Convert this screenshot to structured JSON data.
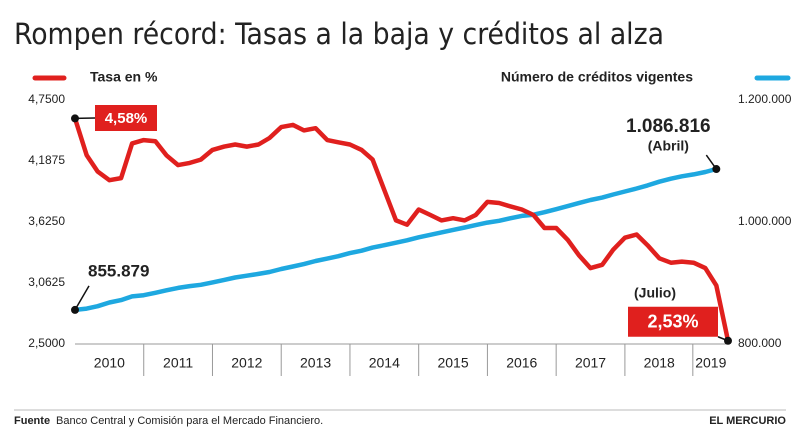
{
  "chart_data": {
    "type": "line",
    "title": "Rompen récord: Tasas a la baja y créditos al alza",
    "x": [
      2010,
      2010.17,
      2010.33,
      2010.5,
      2010.67,
      2010.83,
      2011,
      2011.17,
      2011.33,
      2011.5,
      2011.67,
      2011.83,
      2012,
      2012.17,
      2012.33,
      2012.5,
      2012.67,
      2012.83,
      2013,
      2013.17,
      2013.33,
      2013.5,
      2013.67,
      2013.83,
      2014,
      2014.17,
      2014.33,
      2014.5,
      2014.67,
      2014.83,
      2015,
      2015.17,
      2015.33,
      2015.5,
      2015.67,
      2015.83,
      2016,
      2016.17,
      2016.33,
      2016.5,
      2016.67,
      2016.83,
      2017,
      2017.17,
      2017.33,
      2017.5,
      2017.67,
      2017.83,
      2018,
      2018.17,
      2018.33,
      2018.5,
      2018.67,
      2018.83,
      2019,
      2019.17,
      2019.33,
      2019.5
    ],
    "xlim": [
      2010,
      2019.5
    ],
    "xticks": [
      {
        "value": 2010.5,
        "label": "2010"
      },
      {
        "value": 2011.5,
        "label": "2011"
      },
      {
        "value": 2012.5,
        "label": "2012"
      },
      {
        "value": 2013.5,
        "label": "2013"
      },
      {
        "value": 2014.5,
        "label": "2014"
      },
      {
        "value": 2015.5,
        "label": "2015"
      },
      {
        "value": 2016.5,
        "label": "2016"
      },
      {
        "value": 2017.5,
        "label": "2017"
      },
      {
        "value": 2018.5,
        "label": "2018"
      },
      {
        "value": 2019.25,
        "label": "2019"
      }
    ],
    "ylim": [
      2.5,
      4.75
    ],
    "yticks": [
      {
        "value": 2.5,
        "label": "2,5000"
      },
      {
        "value": 3.0625,
        "label": "3,0625"
      },
      {
        "value": 3.625,
        "label": "3,6250"
      },
      {
        "value": 4.1875,
        "label": "4,1875"
      },
      {
        "value": 4.75,
        "label": "4,7500"
      }
    ],
    "y2lim": [
      800000,
      1200000
    ],
    "y2ticks": [
      {
        "value": 800000,
        "label": "800.000"
      },
      {
        "value": 1000000,
        "label": "1.000.000"
      },
      {
        "value": 1200000,
        "label": "1.200.000"
      }
    ],
    "grid": false,
    "series": [
      {
        "name": "Tasa en %",
        "color": "#e0201e",
        "values": [
          4.58,
          4.24,
          4.09,
          4.01,
          4.03,
          4.35,
          4.38,
          4.37,
          4.24,
          4.15,
          4.17,
          4.2,
          4.29,
          4.32,
          4.34,
          4.32,
          4.34,
          4.4,
          4.5,
          4.52,
          4.47,
          4.49,
          4.38,
          4.36,
          4.34,
          4.29,
          4.2,
          3.92,
          3.64,
          3.6,
          3.74,
          3.69,
          3.64,
          3.66,
          3.64,
          3.69,
          3.81,
          3.8,
          3.77,
          3.74,
          3.69,
          3.57,
          3.57,
          3.46,
          3.32,
          3.2,
          3.23,
          3.37,
          3.48,
          3.51,
          3.41,
          3.29,
          3.25,
          3.26,
          3.25,
          3.2,
          3.04,
          2.53
        ],
        "value_labels": [
          "4,58%",
          null,
          null,
          null,
          null,
          null,
          null,
          null,
          null,
          null,
          null,
          null,
          null,
          null,
          null,
          null,
          null,
          null,
          null,
          null,
          null,
          null,
          null,
          null,
          null,
          null,
          null,
          null,
          null,
          null,
          null,
          null,
          null,
          null,
          null,
          null,
          null,
          null,
          null,
          null,
          null,
          null,
          null,
          null,
          null,
          null,
          null,
          null,
          null,
          null,
          null,
          null,
          null,
          null,
          null,
          null,
          null,
          "2,53%"
        ]
      },
      {
        "name": "Número de créditos vigentes",
        "color": "#1ea8e0",
        "axis": "y2",
        "values": [
          855879,
          858000,
          862000,
          868000,
          872000,
          878000,
          880000,
          884000,
          888000,
          892000,
          895000,
          897000,
          901000,
          905000,
          909000,
          912000,
          915000,
          918000,
          923000,
          927000,
          931000,
          936000,
          940000,
          944000,
          949000,
          953000,
          958000,
          962000,
          966000,
          970000,
          975000,
          979000,
          983000,
          987000,
          991000,
          995000,
          999000,
          1002000,
          1006000,
          1010000,
          1012000,
          1016000,
          1021000,
          1026000,
          1031000,
          1036000,
          1040000,
          1045000,
          1050000,
          1055000,
          1060000,
          1066000,
          1071000,
          1075000,
          1078000,
          1082000,
          1086816,
          null
        ],
        "value_labels": [
          "855.879",
          null,
          null,
          null,
          null,
          null,
          null,
          null,
          null,
          null,
          null,
          null,
          null,
          null,
          null,
          null,
          null,
          null,
          null,
          null,
          null,
          null,
          null,
          null,
          null,
          null,
          null,
          null,
          null,
          null,
          null,
          null,
          null,
          null,
          null,
          null,
          null,
          null,
          null,
          null,
          null,
          null,
          null,
          null,
          null,
          null,
          null,
          null,
          null,
          null,
          null,
          null,
          null,
          null,
          null,
          null,
          "1.086.816",
          null
        ]
      }
    ],
    "annotations": [
      "(Abril)",
      "(Julio)"
    ],
    "source_label": "Fuente",
    "source": "Banco Central y Comisión para el Mercado Financiero.",
    "credit": "EL MERCURIO"
  }
}
